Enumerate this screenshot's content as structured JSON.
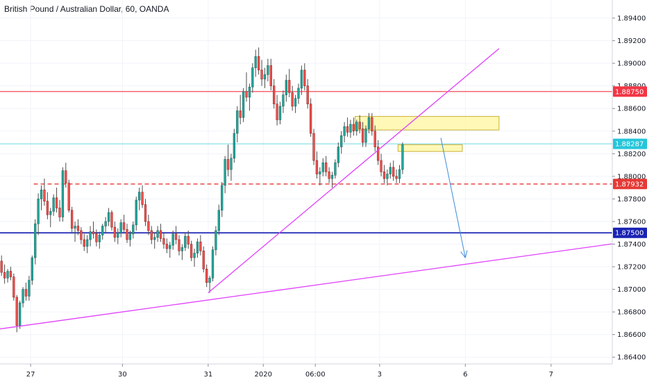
{
  "header": {
    "title": "British Pound / Australian Dollar, 60, OANDA"
  },
  "colors": {
    "up": "#26a69a",
    "up_border": "#1e6f67",
    "down": "#ef5350",
    "down_border": "#9b2b28",
    "wick": "#4d4d4d",
    "resistance": "#f23645",
    "support_dashed": "#e53935",
    "current": "#26c6da",
    "blue_level": "#1a23b3",
    "trendline": "#e040fb",
    "arrow": "#3d8bd9",
    "zone_fill": "#fff59d",
    "zone_border": "#c9b037",
    "grid": "#f0f3fa",
    "axis_text": "#131722"
  },
  "chart_data": {
    "type": "candlestick",
    "title": "British Pound / Australian Dollar, 60, OANDA",
    "xlabel": "",
    "ylabel": "",
    "ylim": [
      1.8634,
      1.8956
    ],
    "x_range_bars": [
      0,
      200
    ],
    "grid": true,
    "y_ticks": [
      1.894,
      1.892,
      1.89,
      1.888,
      1.886,
      1.884,
      1.882,
      1.88,
      1.878,
      1.876,
      1.874,
      1.872,
      1.87,
      1.868,
      1.866,
      1.864
    ],
    "y_tick_labels": [
      "1.89400",
      "1.89200",
      "1.89000",
      "1.88800",
      "1.88600",
      "1.88400",
      "1.88200",
      "1.88000",
      "1.87800",
      "1.87600",
      "1.87400",
      "1.87200",
      "1.87000",
      "1.86800",
      "1.86600",
      "1.86400"
    ],
    "x_ticks": [
      {
        "bar": 10,
        "label": "27"
      },
      {
        "bar": 40,
        "label": "30"
      },
      {
        "bar": 68,
        "label": "31"
      },
      {
        "bar": 86,
        "label": "2020"
      },
      {
        "bar": 103,
        "label": "06:00"
      },
      {
        "bar": 124,
        "label": "3"
      },
      {
        "bar": 152,
        "label": "6"
      },
      {
        "bar": 180,
        "label": "7"
      }
    ],
    "horizontal_levels": [
      {
        "price": 1.8875,
        "label": "1.88750",
        "style": "solid",
        "color": "#f23645",
        "from_bar": 0
      },
      {
        "price": 1.88287,
        "label": "1.88287",
        "style": "solid-light",
        "color": "#26c6da",
        "from_bar": 0
      },
      {
        "price": 1.87932,
        "label": "1.87932",
        "style": "dashed",
        "color": "#e53935",
        "from_bar": 11
      },
      {
        "price": 1.875,
        "label": "1.87500",
        "style": "solid",
        "color": "#1a23b3",
        "from_bar": 0
      }
    ],
    "trendlines": [
      {
        "x1": 68,
        "y1": 1.8697,
        "x2": 163,
        "y2": 1.8913
      },
      {
        "x1": 0,
        "y1": 1.8665,
        "x2": 202,
        "y2": 1.8741
      }
    ],
    "zones": [
      {
        "x1": 116,
        "x2": 163,
        "y1": 1.8841,
        "y2": 1.8853
      },
      {
        "x1": 130,
        "x2": 151,
        "y1": 1.8822,
        "y2": 1.8828
      }
    ],
    "arrow": {
      "x1": 144,
      "y1": 1.8834,
      "x2": 152,
      "y2": 1.8728
    },
    "candles": [
      [
        1.8725,
        1.873,
        1.8712,
        1.8715
      ],
      [
        1.8715,
        1.8722,
        1.8705,
        1.871
      ],
      [
        1.871,
        1.8718,
        1.8706,
        1.8716
      ],
      [
        1.8716,
        1.872,
        1.8708,
        1.8711
      ],
      [
        1.8711,
        1.8714,
        1.869,
        1.8693
      ],
      [
        1.8693,
        1.8695,
        1.8662,
        1.8668
      ],
      [
        1.8668,
        1.869,
        1.8665,
        1.8688
      ],
      [
        1.8688,
        1.8702,
        1.8684,
        1.87
      ],
      [
        1.87,
        1.8706,
        1.869,
        1.8694
      ],
      [
        1.8694,
        1.8712,
        1.869,
        1.8708
      ],
      [
        1.8708,
        1.873,
        1.8704,
        1.8728
      ],
      [
        1.8728,
        1.8762,
        1.8722,
        1.8758
      ],
      [
        1.8758,
        1.8785,
        1.8748,
        1.878
      ],
      [
        1.878,
        1.8792,
        1.877,
        1.8788
      ],
      [
        1.8788,
        1.8798,
        1.8774,
        1.8778
      ],
      [
        1.8778,
        1.8786,
        1.8762,
        1.8766
      ],
      [
        1.8766,
        1.8772,
        1.8755,
        1.8769
      ],
      [
        1.8769,
        1.8784,
        1.8765,
        1.8781
      ],
      [
        1.8781,
        1.879,
        1.8768,
        1.8772
      ],
      [
        1.8772,
        1.8779,
        1.876,
        1.8764
      ],
      [
        1.8764,
        1.8808,
        1.876,
        1.8805
      ],
      [
        1.8805,
        1.8812,
        1.879,
        1.8794
      ],
      [
        1.8794,
        1.8797,
        1.8768,
        1.877
      ],
      [
        1.877,
        1.8773,
        1.875,
        1.8754
      ],
      [
        1.8754,
        1.876,
        1.8742,
        1.8756
      ],
      [
        1.8756,
        1.8762,
        1.8748,
        1.8752
      ],
      [
        1.8752,
        1.8755,
        1.874,
        1.8744
      ],
      [
        1.8744,
        1.8749,
        1.8734,
        1.8738
      ],
      [
        1.8738,
        1.8748,
        1.8732,
        1.8744
      ],
      [
        1.8744,
        1.8756,
        1.8738,
        1.8751
      ],
      [
        1.8751,
        1.876,
        1.8745,
        1.8749
      ],
      [
        1.8749,
        1.8753,
        1.8738,
        1.8742
      ],
      [
        1.8742,
        1.8751,
        1.8736,
        1.8748
      ],
      [
        1.8748,
        1.8758,
        1.8744,
        1.8756
      ],
      [
        1.8756,
        1.8764,
        1.875,
        1.876
      ],
      [
        1.876,
        1.8772,
        1.8756,
        1.8768
      ],
      [
        1.8768,
        1.877,
        1.8752,
        1.8755
      ],
      [
        1.8755,
        1.876,
        1.8742,
        1.8746
      ],
      [
        1.8746,
        1.8754,
        1.874,
        1.875
      ],
      [
        1.875,
        1.8762,
        1.8746,
        1.8759
      ],
      [
        1.8759,
        1.8766,
        1.875,
        1.8753
      ],
      [
        1.8753,
        1.8758,
        1.8741,
        1.8744
      ],
      [
        1.8744,
        1.8752,
        1.8738,
        1.8749
      ],
      [
        1.8749,
        1.876,
        1.8745,
        1.8757
      ],
      [
        1.8757,
        1.8782,
        1.8752,
        1.8779
      ],
      [
        1.8779,
        1.879,
        1.877,
        1.8786
      ],
      [
        1.8786,
        1.8792,
        1.8772,
        1.8775
      ],
      [
        1.8775,
        1.878,
        1.8756,
        1.876
      ],
      [
        1.876,
        1.8766,
        1.8748,
        1.8752
      ],
      [
        1.8752,
        1.8756,
        1.874,
        1.8744
      ],
      [
        1.8744,
        1.875,
        1.8736,
        1.8746
      ],
      [
        1.8746,
        1.8756,
        1.8742,
        1.8752
      ],
      [
        1.8752,
        1.8758,
        1.8742,
        1.8745
      ],
      [
        1.8745,
        1.875,
        1.8736,
        1.874
      ],
      [
        1.874,
        1.8745,
        1.8732,
        1.8736
      ],
      [
        1.8736,
        1.8742,
        1.8728,
        1.8739
      ],
      [
        1.8739,
        1.8752,
        1.8735,
        1.8749
      ],
      [
        1.8749,
        1.8756,
        1.874,
        1.8744
      ],
      [
        1.8744,
        1.8748,
        1.873,
        1.8734
      ],
      [
        1.8734,
        1.874,
        1.8726,
        1.8737
      ],
      [
        1.8737,
        1.875,
        1.8734,
        1.8747
      ],
      [
        1.8747,
        1.8752,
        1.8736,
        1.874
      ],
      [
        1.874,
        1.8743,
        1.8725,
        1.8728
      ],
      [
        1.8728,
        1.8736,
        1.872,
        1.8732
      ],
      [
        1.8732,
        1.8745,
        1.8728,
        1.8742
      ],
      [
        1.8742,
        1.8748,
        1.873,
        1.8734
      ],
      [
        1.8734,
        1.8738,
        1.8715,
        1.8718
      ],
      [
        1.8718,
        1.8722,
        1.8702,
        1.8706
      ],
      [
        1.8706,
        1.8712,
        1.8697,
        1.871
      ],
      [
        1.871,
        1.8738,
        1.8707,
        1.8735
      ],
      [
        1.8735,
        1.8756,
        1.873,
        1.8752
      ],
      [
        1.8752,
        1.8775,
        1.8748,
        1.877
      ],
      [
        1.877,
        1.8795,
        1.8764,
        1.8792
      ],
      [
        1.8792,
        1.8818,
        1.8785,
        1.8815
      ],
      [
        1.8815,
        1.8828,
        1.88,
        1.8806
      ],
      [
        1.8806,
        1.882,
        1.8796,
        1.8816
      ],
      [
        1.8816,
        1.8842,
        1.8812,
        1.8838
      ],
      [
        1.8838,
        1.8862,
        1.883,
        1.8858
      ],
      [
        1.8858,
        1.8872,
        1.8846,
        1.8852
      ],
      [
        1.8852,
        1.8878,
        1.8848,
        1.8875
      ],
      [
        1.8875,
        1.8892,
        1.8866,
        1.887
      ],
      [
        1.887,
        1.8882,
        1.8858,
        1.8879
      ],
      [
        1.8879,
        1.89,
        1.8874,
        1.8896
      ],
      [
        1.8896,
        1.8912,
        1.8888,
        1.8906
      ],
      [
        1.8906,
        1.8914,
        1.889,
        1.8894
      ],
      [
        1.8894,
        1.8903,
        1.888,
        1.8886
      ],
      [
        1.8886,
        1.8896,
        1.8878,
        1.889
      ],
      [
        1.889,
        1.8904,
        1.8884,
        1.8898
      ],
      [
        1.8898,
        1.8904,
        1.8876,
        1.888
      ],
      [
        1.888,
        1.8886,
        1.886,
        1.8864
      ],
      [
        1.8864,
        1.8872,
        1.8845,
        1.885
      ],
      [
        1.885,
        1.8866,
        1.8846,
        1.8862
      ],
      [
        1.8862,
        1.8876,
        1.8856,
        1.8872
      ],
      [
        1.8872,
        1.889,
        1.8866,
        1.8885
      ],
      [
        1.8885,
        1.8895,
        1.887,
        1.8874
      ],
      [
        1.8874,
        1.888,
        1.8858,
        1.8862
      ],
      [
        1.8862,
        1.8872,
        1.8856,
        1.8869
      ],
      [
        1.8869,
        1.8882,
        1.8864,
        1.8878
      ],
      [
        1.8878,
        1.8898,
        1.8872,
        1.8894
      ],
      [
        1.8894,
        1.89,
        1.8876,
        1.888
      ],
      [
        1.888,
        1.8886,
        1.886,
        1.8864
      ],
      [
        1.8864,
        1.8869,
        1.8835,
        1.8838
      ],
      [
        1.8838,
        1.8842,
        1.881,
        1.8814
      ],
      [
        1.8814,
        1.8822,
        1.8798,
        1.8802
      ],
      [
        1.8802,
        1.8808,
        1.8792,
        1.8804
      ],
      [
        1.8804,
        1.8816,
        1.88,
        1.8812
      ],
      [
        1.8812,
        1.8818,
        1.88,
        1.8804
      ],
      [
        1.8804,
        1.8808,
        1.8794,
        1.8798
      ],
      [
        1.8798,
        1.8804,
        1.879,
        1.8801
      ],
      [
        1.8801,
        1.8815,
        1.8798,
        1.8812
      ],
      [
        1.8812,
        1.883,
        1.8808,
        1.8826
      ],
      [
        1.8826,
        1.884,
        1.882,
        1.8836
      ],
      [
        1.8836,
        1.8848,
        1.883,
        1.8844
      ],
      [
        1.8844,
        1.8852,
        1.8835,
        1.8839
      ],
      [
        1.8839,
        1.885,
        1.8834,
        1.8846
      ],
      [
        1.8846,
        1.8852,
        1.8836,
        1.884
      ],
      [
        1.884,
        1.885,
        1.8836,
        1.8848
      ],
      [
        1.8848,
        1.8854,
        1.8838,
        1.8842
      ],
      [
        1.8842,
        1.8848,
        1.8826,
        1.883
      ],
      [
        1.883,
        1.8845,
        1.8826,
        1.8842
      ],
      [
        1.8842,
        1.8856,
        1.8838,
        1.8852
      ],
      [
        1.8852,
        1.8856,
        1.8836,
        1.884
      ],
      [
        1.884,
        1.8845,
        1.8822,
        1.8826
      ],
      [
        1.8826,
        1.8832,
        1.881,
        1.8814
      ],
      [
        1.8814,
        1.882,
        1.88,
        1.8804
      ],
      [
        1.8804,
        1.881,
        1.8794,
        1.8798
      ],
      [
        1.8798,
        1.8806,
        1.8792,
        1.8802
      ],
      [
        1.8802,
        1.8812,
        1.8798,
        1.8808
      ],
      [
        1.8808,
        1.8814,
        1.8796,
        1.88
      ],
      [
        1.88,
        1.8806,
        1.8794,
        1.8798
      ],
      [
        1.8798,
        1.881,
        1.8794,
        1.8806
      ],
      [
        1.8806,
        1.883,
        1.8802,
        1.8828
      ]
    ]
  }
}
